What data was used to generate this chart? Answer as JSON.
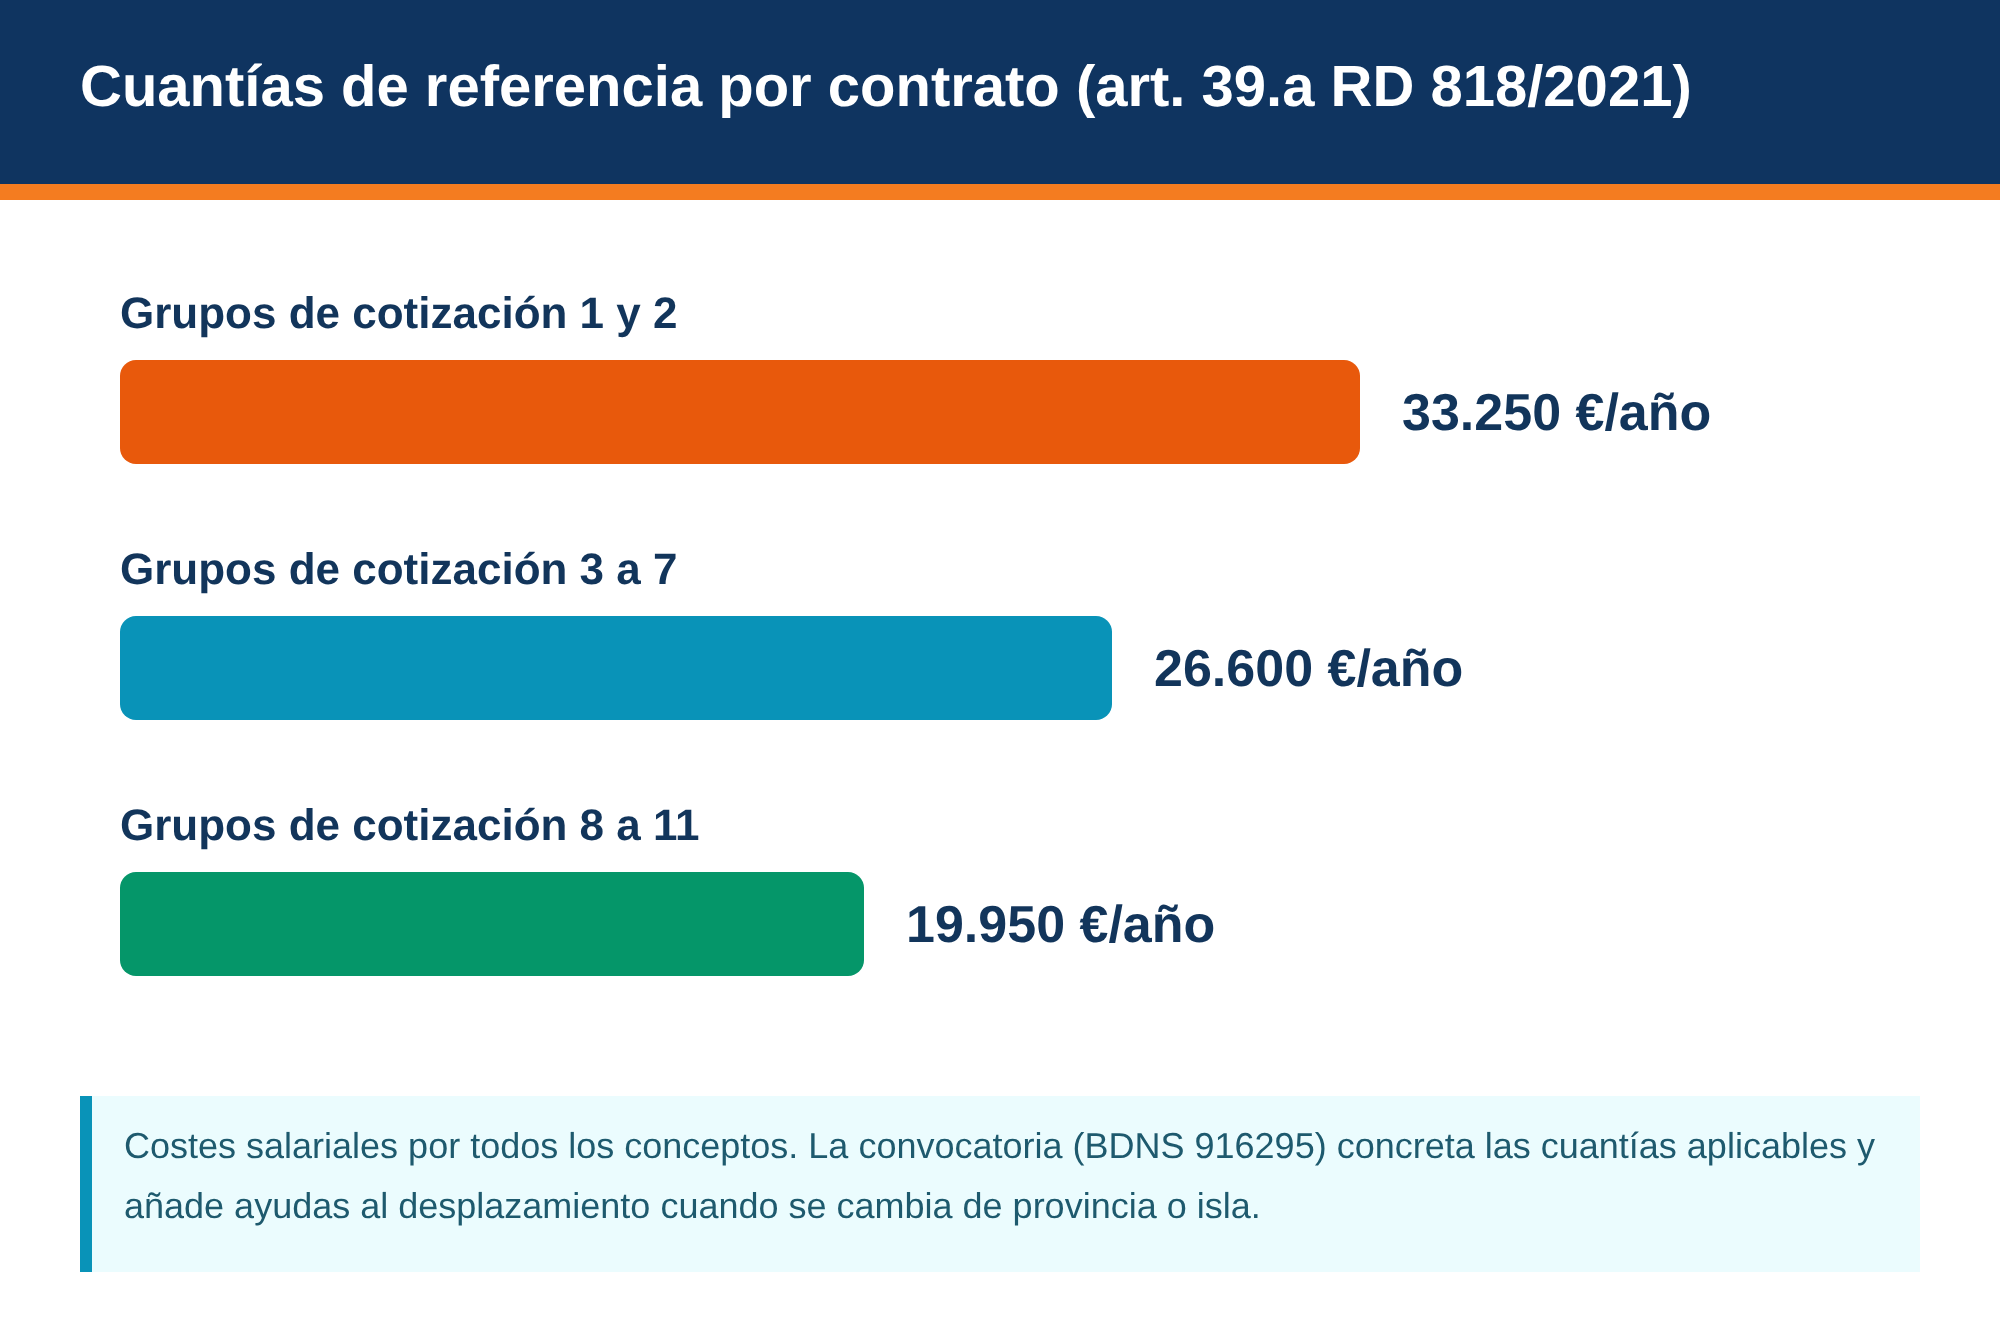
{
  "chart_data": {
    "type": "bar",
    "orientation": "horizontal",
    "title": "Cuantías de referencia por contrato (art. 39.a RD 818/2021)",
    "categories": [
      "Grupos de cotización 1 y 2",
      "Grupos de cotización 3 a 7",
      "Grupos de cotización 8 a 11"
    ],
    "values": [
      33250,
      26600,
      19950
    ],
    "colors": [
      "#e8590c",
      "#0993b8",
      "#059669"
    ],
    "value_labels": [
      "33.250 €/año",
      "26.600 €/año",
      "19.950 €/año"
    ],
    "tick_labels": "y",
    "annotations": [
      "Costes salariales por todos los conceptos. La convocatoria (BDNS 916295) concreta las cuantías aplicables y añade ayudas al desplazamiento cuando se cambia de provincia o isla."
    ]
  }
}
